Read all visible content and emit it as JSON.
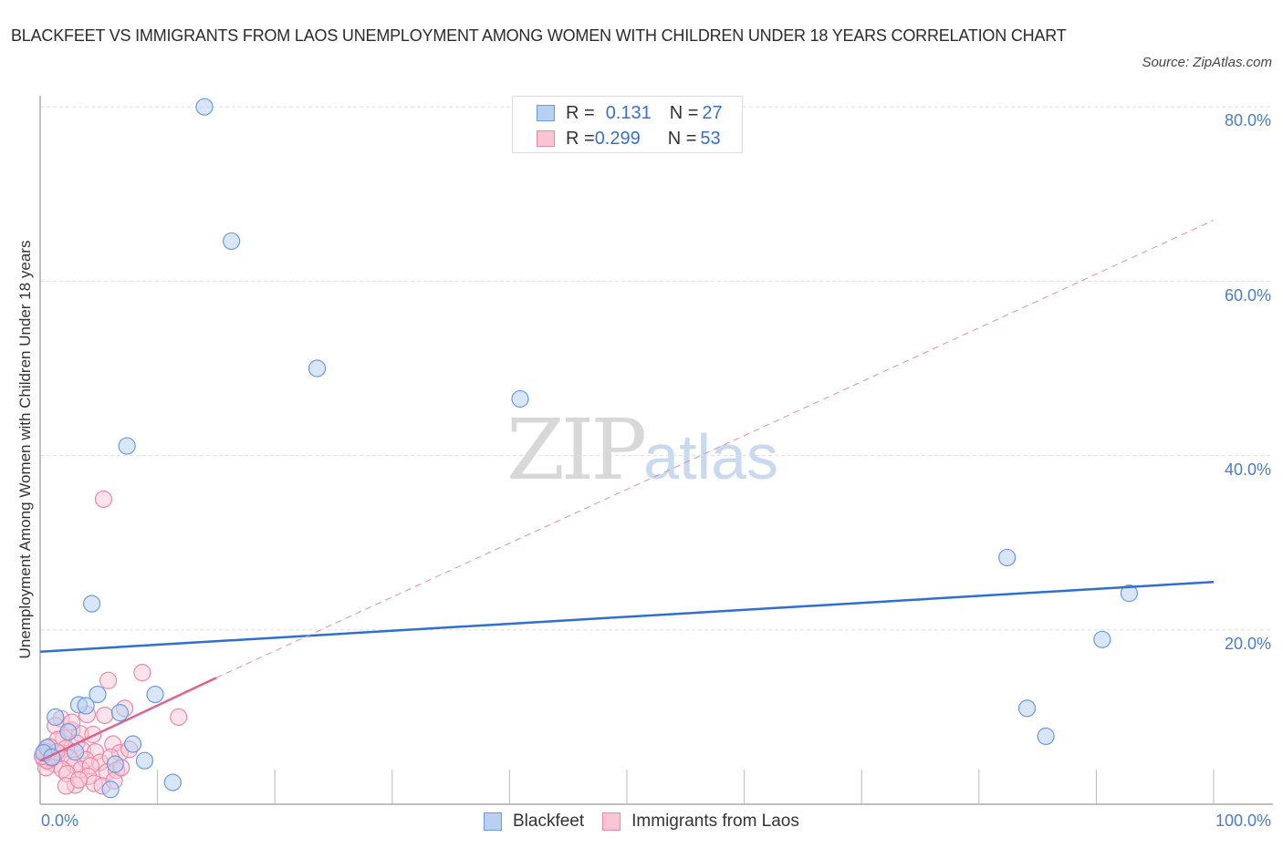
{
  "header": {
    "title": "BLACKFEET VS IMMIGRANTS FROM LAOS UNEMPLOYMENT AMONG WOMEN WITH CHILDREN UNDER 18 YEARS CORRELATION CHART",
    "source": "Source: ZipAtlas.com"
  },
  "watermark": {
    "zip": "ZIP",
    "atlas": "atlas"
  },
  "stats": {
    "rows": [
      {
        "r_label": "R = ",
        "r_value": "0.131",
        "n_label": "N = ",
        "n_value": "27",
        "color": "#b8d1f3",
        "border": "#6b9ae0"
      },
      {
        "r_label": "R = ",
        "r_value": "0.299",
        "n_label": "N = ",
        "n_value": "53",
        "color": "#f9c5d5",
        "border": "#e88aa7"
      }
    ]
  },
  "legend": {
    "items": [
      {
        "label": "Blackfeet",
        "color": "#b8d1f3",
        "border": "#6b9ae0"
      },
      {
        "label": "Immigrants from Laos",
        "color": "#f9c5d5",
        "border": "#e88aa7"
      }
    ]
  },
  "axes": {
    "ylabel": "Unemployment Among Women with Children Under 18 years",
    "x_left": "0.0%",
    "x_right": "100.0%",
    "y_ticks": [
      "20.0%",
      "40.0%",
      "60.0%",
      "80.0%"
    ]
  },
  "chart_data": {
    "type": "scatter",
    "title": "Blackfeet vs Immigrants from Laos Unemployment Among Women with Children Under 18 years Correlation Chart",
    "xlabel": "",
    "ylabel": "Unemployment Among Women with Children Under 18 years",
    "xlim": [
      0,
      100
    ],
    "ylim": [
      0,
      80
    ],
    "x_tick_labels": [
      "0.0%",
      "100.0%"
    ],
    "y_tick_labels": [
      "20.0%",
      "40.0%",
      "60.0%",
      "80.0%"
    ],
    "grid": true,
    "legend_position": "bottom",
    "series": [
      {
        "name": "Blackfeet",
        "color": "#6b9ae0",
        "R": 0.131,
        "N": 27,
        "trend": {
          "x": [
            0,
            100
          ],
          "y": [
            17.5,
            25.5
          ],
          "style": "solid"
        },
        "points": [
          [
            14.0,
            80.0
          ],
          [
            16.3,
            64.6
          ],
          [
            23.6,
            50.0
          ],
          [
            40.9,
            46.5
          ],
          [
            7.4,
            41.1
          ],
          [
            4.4,
            23.0
          ],
          [
            82.4,
            28.3
          ],
          [
            92.8,
            24.2
          ],
          [
            90.5,
            18.9
          ],
          [
            84.1,
            11.0
          ],
          [
            85.7,
            7.8
          ],
          [
            4.9,
            12.6
          ],
          [
            9.8,
            12.6
          ],
          [
            3.3,
            11.4
          ],
          [
            3.9,
            11.3
          ],
          [
            1.3,
            10.0
          ],
          [
            6.8,
            10.5
          ],
          [
            7.9,
            6.9
          ],
          [
            2.4,
            8.3
          ],
          [
            8.9,
            5.0
          ],
          [
            6.4,
            4.6
          ],
          [
            11.3,
            2.5
          ],
          [
            6.0,
            1.7
          ],
          [
            0.6,
            6.5
          ],
          [
            0.3,
            5.9
          ],
          [
            3.0,
            6.0
          ],
          [
            1.0,
            5.4
          ]
        ]
      },
      {
        "name": "Immigrants from Laos",
        "color": "#e88aa7",
        "R": 0.299,
        "N": 53,
        "trend": {
          "x": [
            0,
            15
          ],
          "y": [
            5.0,
            14.5
          ],
          "style": "solid",
          "extended_dashed": {
            "x": [
              15,
              100
            ],
            "y": [
              14.5,
              67.0
            ]
          }
        },
        "points": [
          [
            5.4,
            35.0
          ],
          [
            5.8,
            14.2
          ],
          [
            8.7,
            15.1
          ],
          [
            11.8,
            10.0
          ],
          [
            7.2,
            11.0
          ],
          [
            4.0,
            10.3
          ],
          [
            5.5,
            10.2
          ],
          [
            1.8,
            9.8
          ],
          [
            1.3,
            9.0
          ],
          [
            2.7,
            8.5
          ],
          [
            3.4,
            8.1
          ],
          [
            2.0,
            7.6
          ],
          [
            4.5,
            8.0
          ],
          [
            6.2,
            6.9
          ],
          [
            3.1,
            7.0
          ],
          [
            1.5,
            7.4
          ],
          [
            0.8,
            6.6
          ],
          [
            2.2,
            6.4
          ],
          [
            3.6,
            6.2
          ],
          [
            4.7,
            6.0
          ],
          [
            6.8,
            5.9
          ],
          [
            7.6,
            6.3
          ],
          [
            0.4,
            6.1
          ],
          [
            0.9,
            5.6
          ],
          [
            1.6,
            5.8
          ],
          [
            2.5,
            5.3
          ],
          [
            3.9,
            5.1
          ],
          [
            5.1,
            4.8
          ],
          [
            6.0,
            5.4
          ],
          [
            0.3,
            5.2
          ],
          [
            0.7,
            4.9
          ],
          [
            1.2,
            4.6
          ],
          [
            2.9,
            4.5
          ],
          [
            3.5,
            4.0
          ],
          [
            4.3,
            4.4
          ],
          [
            5.7,
            3.7
          ],
          [
            6.5,
            3.9
          ],
          [
            0.5,
            4.2
          ],
          [
            1.9,
            4.0
          ],
          [
            2.3,
            3.5
          ],
          [
            4.1,
            3.2
          ],
          [
            3.0,
            2.2
          ],
          [
            2.2,
            2.1
          ],
          [
            4.6,
            2.4
          ],
          [
            5.3,
            2.1
          ],
          [
            6.3,
            2.7
          ],
          [
            0.6,
            5.0
          ],
          [
            1.0,
            5.3
          ],
          [
            0.2,
            5.5
          ],
          [
            1.4,
            6.0
          ],
          [
            3.3,
            2.8
          ],
          [
            6.9,
            4.2
          ],
          [
            2.7,
            9.4
          ]
        ]
      }
    ]
  }
}
